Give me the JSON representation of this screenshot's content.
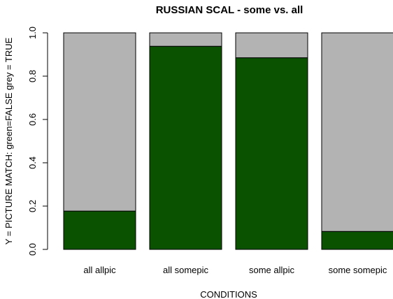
{
  "chart_data": {
    "type": "bar",
    "stacked": true,
    "title": "RUSSIAN SCAL  -  some vs. all",
    "xlabel": "CONDITIONS",
    "ylabel": "Y = PICTURE MATCH: green=FALSE grey = TRUE",
    "categories": [
      "all allpic",
      "all somepic",
      "some allpic",
      "some somepic"
    ],
    "series": [
      {
        "values": [
          0.177,
          0.938,
          0.885,
          0.083
        ],
        "color": "#0b5200"
      },
      {
        "values": [
          0.823,
          0.062,
          0.115,
          0.917
        ],
        "color": "#b3b3b3"
      }
    ],
    "ylim": [
      0,
      1
    ],
    "yticks": [
      "0.0",
      "0.2",
      "0.4",
      "0.6",
      "0.8",
      "1.0"
    ],
    "grid": false,
    "legend": "none"
  }
}
